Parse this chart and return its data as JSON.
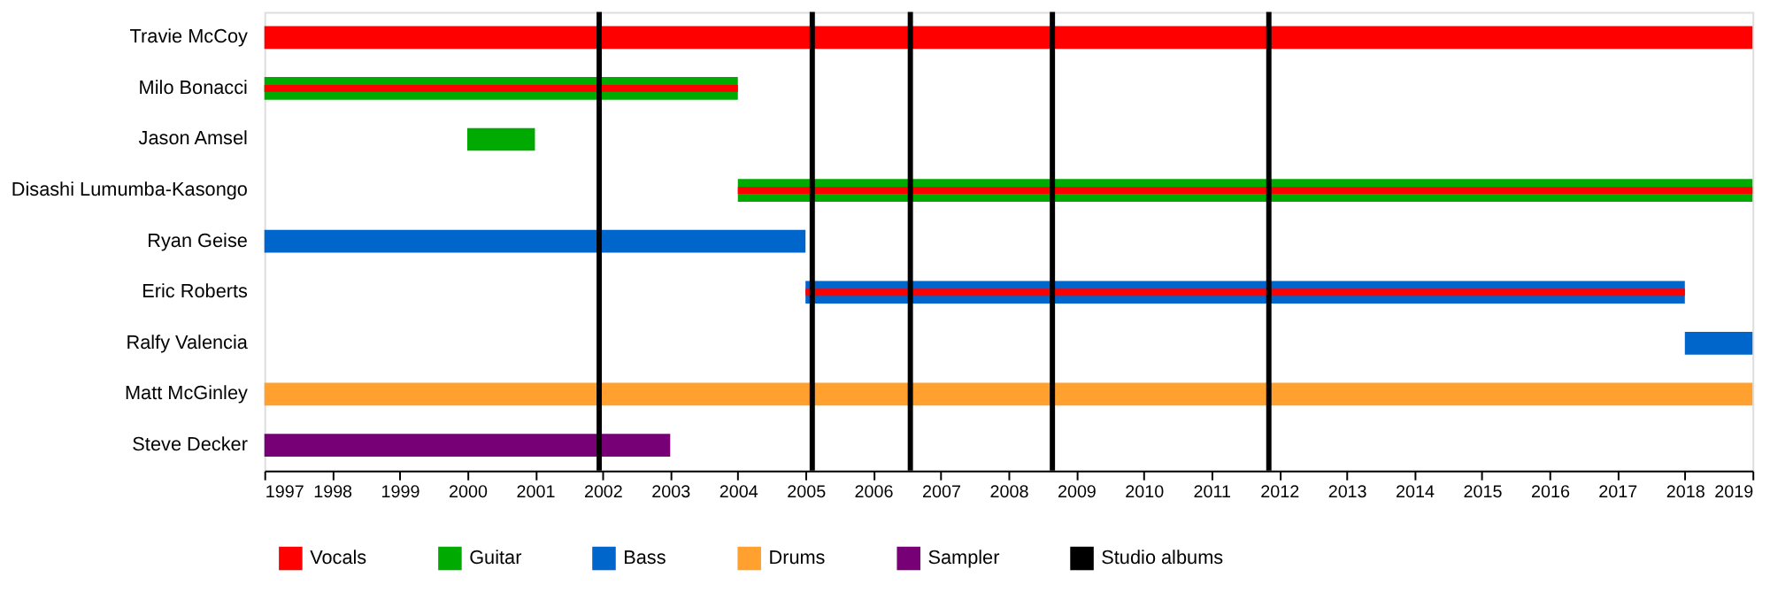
{
  "chart_data": {
    "type": "bar",
    "orientation": "horizontal",
    "categories": [
      "Travie McCoy",
      "Milo Bonacci",
      "Jason Amsel",
      "Disashi Lumumba-Kasongo",
      "Ryan Geise",
      "Eric Roberts",
      "Ralfy Valencia",
      "Matt McGinley",
      "Steve Decker"
    ],
    "series": [
      {
        "name": "Vocals",
        "color": "#ff0000",
        "values": [
          22,
          7,
          null,
          15,
          null,
          13,
          null,
          null,
          null
        ],
        "base": [
          1997,
          1997,
          null,
          2004,
          null,
          2005,
          null,
          null,
          null
        ]
      },
      {
        "name": "Guitar",
        "color": "#00aa00",
        "values": [
          null,
          7,
          1,
          15,
          null,
          null,
          null,
          null,
          null
        ],
        "base": [
          null,
          1997,
          2000,
          2004,
          null,
          null,
          null,
          null,
          null
        ]
      },
      {
        "name": "Bass",
        "color": "#0066cc",
        "values": [
          null,
          null,
          null,
          null,
          8,
          13,
          1,
          null,
          null
        ],
        "base": [
          null,
          null,
          null,
          null,
          1997,
          2005,
          2018,
          null,
          null
        ]
      },
      {
        "name": "Drums",
        "color": "#ffa02f",
        "values": [
          null,
          null,
          null,
          null,
          null,
          null,
          null,
          22,
          null
        ],
        "base": [
          null,
          null,
          null,
          null,
          null,
          null,
          null,
          1997,
          null
        ]
      },
      {
        "name": "Sampler",
        "color": "#770077",
        "values": [
          null,
          null,
          null,
          null,
          null,
          null,
          null,
          null,
          6
        ],
        "base": [
          null,
          null,
          null,
          null,
          null,
          null,
          null,
          null,
          1997
        ]
      }
    ],
    "ref_lines": [
      {
        "axis": "x",
        "value": 2001.95,
        "label": "Studio albums",
        "color": "#000000"
      },
      {
        "axis": "x",
        "value": 2005.1,
        "color": "#000000"
      },
      {
        "axis": "x",
        "value": 2006.55,
        "color": "#000000"
      },
      {
        "axis": "x",
        "value": 2008.65,
        "color": "#000000"
      },
      {
        "axis": "x",
        "value": 2011.85,
        "color": "#000000"
      }
    ],
    "xlim": [
      1997,
      2019
    ],
    "xticks": [
      1997,
      1998,
      1999,
      2000,
      2001,
      2002,
      2003,
      2004,
      2005,
      2006,
      2007,
      2008,
      2009,
      2010,
      2011,
      2012,
      2013,
      2014,
      2015,
      2016,
      2017,
      2018,
      2019
    ],
    "grid": false,
    "legend": "bottom"
  }
}
